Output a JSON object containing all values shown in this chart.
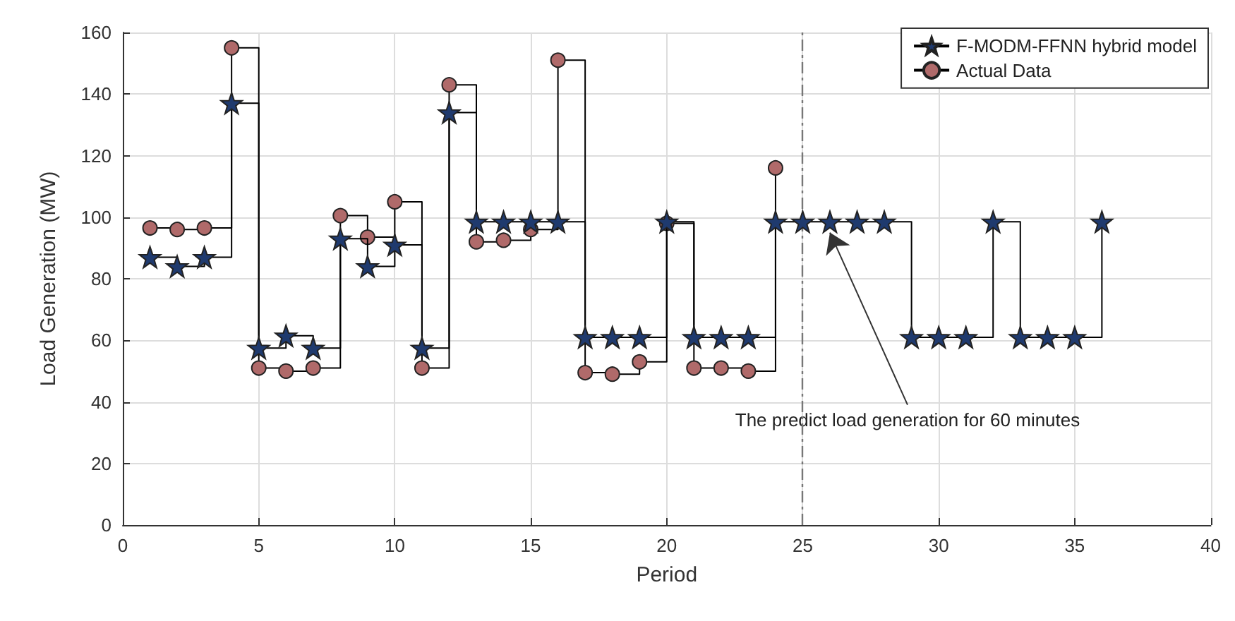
{
  "chart_data": {
    "type": "step",
    "xlabel": "Period",
    "ylabel": "Load Generation (MW)",
    "xlim": [
      0,
      40
    ],
    "xticks": [
      0,
      5,
      10,
      15,
      20,
      25,
      30,
      35,
      40
    ],
    "ylim": [
      0,
      160
    ],
    "yticks": [
      0,
      20,
      40,
      60,
      80,
      100,
      120,
      140,
      160
    ],
    "grid": true,
    "legend": "top right",
    "line_style": "solid",
    "series": [
      {
        "name": "F-MODM-FFNN hybrid model",
        "color": "#1f3a6e",
        "marker": "star",
        "x": [
          1,
          2,
          3,
          4,
          5,
          6,
          7,
          8,
          9,
          10,
          11,
          12,
          13,
          14,
          15,
          16,
          17,
          18,
          19,
          20,
          21,
          22,
          23,
          24,
          25,
          26,
          27,
          28,
          29,
          30,
          31,
          32,
          33,
          34,
          35,
          36
        ],
        "values": [
          87,
          84,
          87,
          137,
          57.5,
          61.5,
          57.5,
          93,
          84,
          91,
          57.5,
          134,
          98.5,
          98.5,
          98.5,
          98.5,
          61,
          61,
          61,
          98.5,
          61,
          61,
          61,
          98.5,
          98.5,
          98.5,
          98.5,
          98.5,
          61,
          61,
          61,
          98.5,
          61,
          61,
          61,
          98.5
        ]
      },
      {
        "name": "Actual Data",
        "color": "#b06a6a",
        "marker": "circle",
        "x": [
          1,
          2,
          3,
          4,
          5,
          6,
          7,
          8,
          9,
          10,
          11,
          12,
          13,
          14,
          15,
          16,
          17,
          18,
          19,
          20,
          21,
          22,
          23,
          24
        ],
        "values": [
          96.5,
          96,
          96.5,
          155,
          51,
          50,
          51,
          100.5,
          93.5,
          105,
          51,
          143,
          92,
          92.5,
          96,
          151,
          49.5,
          49,
          53,
          98,
          51,
          51,
          50,
          116
        ]
      }
    ],
    "ref_lines": [
      {
        "axis": "x",
        "value": 25,
        "color": "#777777",
        "line_style": "dashdot"
      }
    ],
    "annotations": [
      {
        "text": "The predict load generation for 60 minutes",
        "x": 26,
        "y": 95
      }
    ]
  }
}
